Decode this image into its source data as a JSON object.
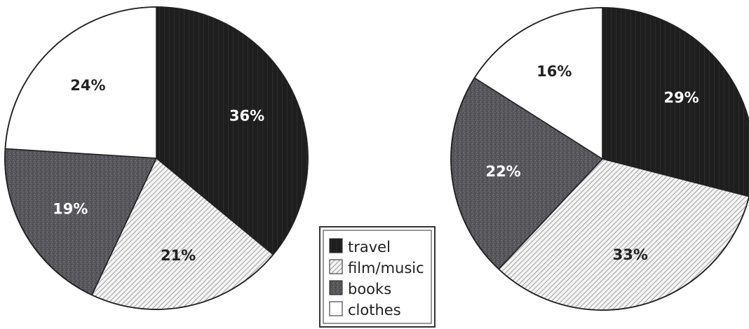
{
  "chart_data": [
    {
      "type": "pie",
      "title": "",
      "slices": [
        {
          "label": "travel",
          "value": 36,
          "text": "36%"
        },
        {
          "label": "film/music",
          "value": 21,
          "text": "21%"
        },
        {
          "label": "books",
          "value": 19,
          "text": "19%"
        },
        {
          "label": "clothes",
          "value": 24,
          "text": "24%"
        }
      ]
    },
    {
      "type": "pie",
      "title": "",
      "slices": [
        {
          "label": "travel",
          "value": 29,
          "text": "29%"
        },
        {
          "label": "film/music",
          "value": 33,
          "text": "33%"
        },
        {
          "label": "books",
          "value": 22,
          "text": "22%"
        },
        {
          "label": "clothes",
          "value": 16,
          "text": "16%"
        }
      ]
    }
  ],
  "legend": {
    "items": [
      {
        "label": "travel",
        "pattern": "solid-black"
      },
      {
        "label": "film/music",
        "pattern": "diagonal-hatch"
      },
      {
        "label": "books",
        "pattern": "grey-speckle"
      },
      {
        "label": "clothes",
        "pattern": "white"
      }
    ],
    "position": "bottom-center"
  },
  "colors": {
    "travel": "#1c1c1c",
    "film_music": "#ffffff",
    "books": "#5b5b60",
    "clothes": "#ffffff",
    "outline": "#222222"
  }
}
